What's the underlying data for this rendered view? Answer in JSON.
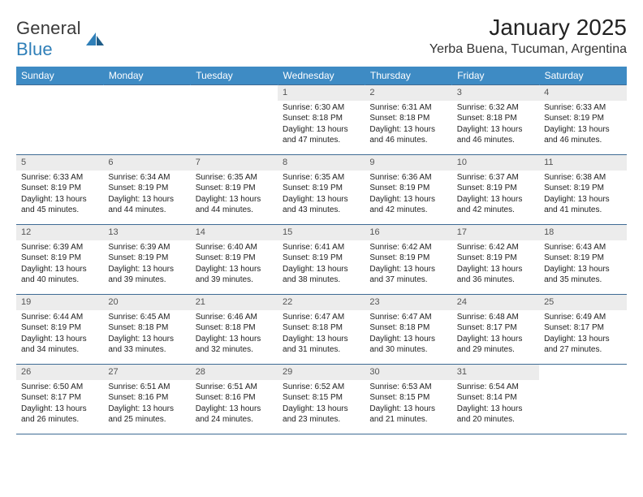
{
  "logo": {
    "text1": "General",
    "text2": "Blue"
  },
  "title": "January 2025",
  "location": "Yerba Buena, Tucuman, Argentina",
  "colors": {
    "header_bg": "#3e8bc4",
    "row_border": "#3e6b94",
    "daynum_bg": "#ececec",
    "logo_blue": "#2f7fb8"
  },
  "dayNames": [
    "Sunday",
    "Monday",
    "Tuesday",
    "Wednesday",
    "Thursday",
    "Friday",
    "Saturday"
  ],
  "weeks": [
    [
      null,
      null,
      null,
      {
        "n": "1",
        "sr": "6:30 AM",
        "ss": "8:18 PM",
        "d1": "13 hours",
        "d2": "and 47 minutes."
      },
      {
        "n": "2",
        "sr": "6:31 AM",
        "ss": "8:18 PM",
        "d1": "13 hours",
        "d2": "and 46 minutes."
      },
      {
        "n": "3",
        "sr": "6:32 AM",
        "ss": "8:18 PM",
        "d1": "13 hours",
        "d2": "and 46 minutes."
      },
      {
        "n": "4",
        "sr": "6:33 AM",
        "ss": "8:19 PM",
        "d1": "13 hours",
        "d2": "and 46 minutes."
      }
    ],
    [
      {
        "n": "5",
        "sr": "6:33 AM",
        "ss": "8:19 PM",
        "d1": "13 hours",
        "d2": "and 45 minutes."
      },
      {
        "n": "6",
        "sr": "6:34 AM",
        "ss": "8:19 PM",
        "d1": "13 hours",
        "d2": "and 44 minutes."
      },
      {
        "n": "7",
        "sr": "6:35 AM",
        "ss": "8:19 PM",
        "d1": "13 hours",
        "d2": "and 44 minutes."
      },
      {
        "n": "8",
        "sr": "6:35 AM",
        "ss": "8:19 PM",
        "d1": "13 hours",
        "d2": "and 43 minutes."
      },
      {
        "n": "9",
        "sr": "6:36 AM",
        "ss": "8:19 PM",
        "d1": "13 hours",
        "d2": "and 42 minutes."
      },
      {
        "n": "10",
        "sr": "6:37 AM",
        "ss": "8:19 PM",
        "d1": "13 hours",
        "d2": "and 42 minutes."
      },
      {
        "n": "11",
        "sr": "6:38 AM",
        "ss": "8:19 PM",
        "d1": "13 hours",
        "d2": "and 41 minutes."
      }
    ],
    [
      {
        "n": "12",
        "sr": "6:39 AM",
        "ss": "8:19 PM",
        "d1": "13 hours",
        "d2": "and 40 minutes."
      },
      {
        "n": "13",
        "sr": "6:39 AM",
        "ss": "8:19 PM",
        "d1": "13 hours",
        "d2": "and 39 minutes."
      },
      {
        "n": "14",
        "sr": "6:40 AM",
        "ss": "8:19 PM",
        "d1": "13 hours",
        "d2": "and 39 minutes."
      },
      {
        "n": "15",
        "sr": "6:41 AM",
        "ss": "8:19 PM",
        "d1": "13 hours",
        "d2": "and 38 minutes."
      },
      {
        "n": "16",
        "sr": "6:42 AM",
        "ss": "8:19 PM",
        "d1": "13 hours",
        "d2": "and 37 minutes."
      },
      {
        "n": "17",
        "sr": "6:42 AM",
        "ss": "8:19 PM",
        "d1": "13 hours",
        "d2": "and 36 minutes."
      },
      {
        "n": "18",
        "sr": "6:43 AM",
        "ss": "8:19 PM",
        "d1": "13 hours",
        "d2": "and 35 minutes."
      }
    ],
    [
      {
        "n": "19",
        "sr": "6:44 AM",
        "ss": "8:19 PM",
        "d1": "13 hours",
        "d2": "and 34 minutes."
      },
      {
        "n": "20",
        "sr": "6:45 AM",
        "ss": "8:18 PM",
        "d1": "13 hours",
        "d2": "and 33 minutes."
      },
      {
        "n": "21",
        "sr": "6:46 AM",
        "ss": "8:18 PM",
        "d1": "13 hours",
        "d2": "and 32 minutes."
      },
      {
        "n": "22",
        "sr": "6:47 AM",
        "ss": "8:18 PM",
        "d1": "13 hours",
        "d2": "and 31 minutes."
      },
      {
        "n": "23",
        "sr": "6:47 AM",
        "ss": "8:18 PM",
        "d1": "13 hours",
        "d2": "and 30 minutes."
      },
      {
        "n": "24",
        "sr": "6:48 AM",
        "ss": "8:17 PM",
        "d1": "13 hours",
        "d2": "and 29 minutes."
      },
      {
        "n": "25",
        "sr": "6:49 AM",
        "ss": "8:17 PM",
        "d1": "13 hours",
        "d2": "and 27 minutes."
      }
    ],
    [
      {
        "n": "26",
        "sr": "6:50 AM",
        "ss": "8:17 PM",
        "d1": "13 hours",
        "d2": "and 26 minutes."
      },
      {
        "n": "27",
        "sr": "6:51 AM",
        "ss": "8:16 PM",
        "d1": "13 hours",
        "d2": "and 25 minutes."
      },
      {
        "n": "28",
        "sr": "6:51 AM",
        "ss": "8:16 PM",
        "d1": "13 hours",
        "d2": "and 24 minutes."
      },
      {
        "n": "29",
        "sr": "6:52 AM",
        "ss": "8:15 PM",
        "d1": "13 hours",
        "d2": "and 23 minutes."
      },
      {
        "n": "30",
        "sr": "6:53 AM",
        "ss": "8:15 PM",
        "d1": "13 hours",
        "d2": "and 21 minutes."
      },
      {
        "n": "31",
        "sr": "6:54 AM",
        "ss": "8:14 PM",
        "d1": "13 hours",
        "d2": "and 20 minutes."
      },
      null
    ]
  ],
  "labels": {
    "sunrise": "Sunrise:",
    "sunset": "Sunset:",
    "daylight": "Daylight:"
  }
}
